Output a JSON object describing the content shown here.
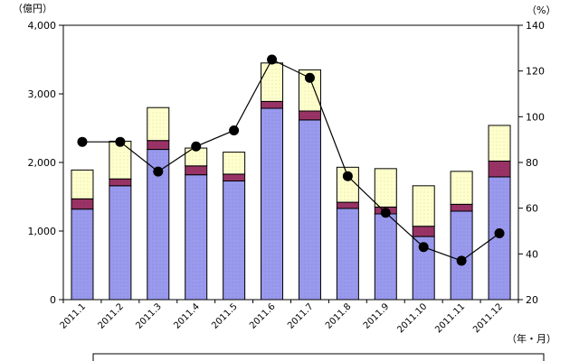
{
  "chart_data": {
    "type": "bar",
    "left_unit": "（億円）",
    "right_unit": "（%）",
    "x_unit": "（年・月）",
    "categories": [
      "2011.1",
      "2011.2",
      "2011.3",
      "2011.4",
      "2011.5",
      "2011.6",
      "2011.7",
      "2011.8",
      "2011.9",
      "2011.10",
      "2011.11",
      "2011.12"
    ],
    "left_axis": {
      "min": 0,
      "max": 4000,
      "ticks": [
        0,
        1000,
        2000,
        3000,
        4000
      ],
      "tick_labels": [
        "0",
        "1,000",
        "2,000",
        "3,000",
        "4,000"
      ]
    },
    "right_axis": {
      "min": 20,
      "max": 140,
      "ticks": [
        20,
        40,
        60,
        80,
        100,
        120,
        140
      ],
      "tick_labels": [
        "20",
        "40",
        "60",
        "80",
        "100",
        "120",
        "140"
      ]
    },
    "stacked": true,
    "series": [
      {
        "axis": "left",
        "kind": "bar",
        "color": "#9999ee",
        "values": [
          1320,
          1660,
          2190,
          1820,
          1730,
          2790,
          2620,
          1330,
          1250,
          920,
          1290,
          1790
        ]
      },
      {
        "axis": "left",
        "kind": "bar",
        "color": "#993366",
        "values": [
          150,
          100,
          130,
          130,
          100,
          100,
          130,
          90,
          100,
          150,
          100,
          230
        ]
      },
      {
        "axis": "left",
        "kind": "bar",
        "color": "#ffffcc",
        "values": [
          420,
          550,
          480,
          260,
          320,
          560,
          600,
          510,
          560,
          590,
          480,
          520
        ]
      },
      {
        "axis": "right",
        "kind": "line",
        "color": "#000000",
        "values": [
          89,
          89,
          76,
          87,
          94,
          125,
          117,
          74,
          58,
          43,
          37,
          49
        ]
      }
    ],
    "grid": false
  }
}
